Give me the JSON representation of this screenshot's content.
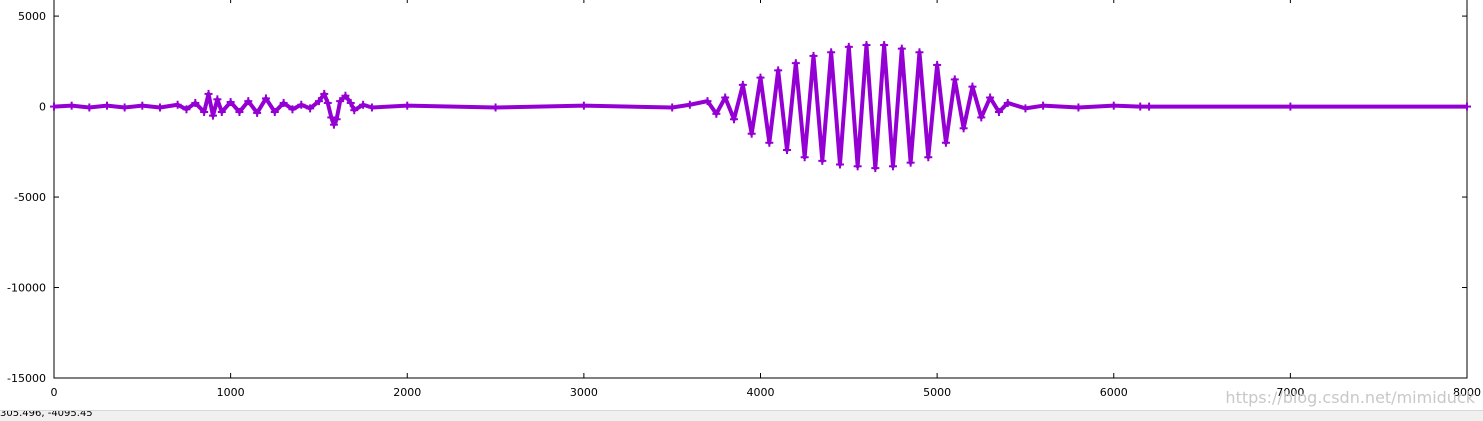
{
  "colors": {
    "series": "#9400d3",
    "axis": "#000000",
    "background": "#ffffff"
  },
  "status": {
    "coords": "305.496, -4095.45"
  },
  "watermark": {
    "text": "https://blog.csdn.net/mimiduck"
  },
  "chart_data": {
    "type": "line",
    "title": "",
    "xlabel": "",
    "ylabel": "",
    "xlim": [
      0,
      8000
    ],
    "ylim": [
      -15000,
      6000
    ],
    "grid": false,
    "legend": "none",
    "xticks": [
      0,
      1000,
      2000,
      3000,
      4000,
      5000,
      6000,
      7000,
      8000
    ],
    "yticks": [
      -15000,
      -10000,
      -5000,
      0,
      5000
    ],
    "series": [
      {
        "style": "points-plus",
        "x": [
          0,
          100,
          200,
          300,
          400,
          500,
          600,
          700,
          750,
          800,
          850,
          875,
          900,
          925,
          950,
          1000,
          1050,
          1100,
          1150,
          1200,
          1250,
          1300,
          1350,
          1400,
          1450,
          1500,
          1530,
          1550,
          1570,
          1585,
          1600,
          1620,
          1650,
          1680,
          1700,
          1750,
          1800,
          2000,
          2500,
          3000,
          3500,
          3600,
          3700,
          3750,
          3800,
          3850,
          3900,
          3950,
          4000,
          4050,
          4100,
          4150,
          4200,
          4250,
          4300,
          4350,
          4400,
          4450,
          4500,
          4550,
          4600,
          4650,
          4700,
          4750,
          4800,
          4850,
          4900,
          4950,
          5000,
          5050,
          5100,
          5150,
          5200,
          5250,
          5300,
          5350,
          5400,
          5500,
          5600,
          5800,
          6000,
          6150,
          6200,
          7000,
          8000
        ],
        "y": [
          0,
          50,
          -50,
          50,
          -50,
          50,
          -50,
          100,
          -150,
          200,
          -300,
          700,
          -500,
          400,
          -300,
          250,
          -300,
          300,
          -350,
          450,
          -300,
          200,
          -150,
          100,
          -100,
          300,
          700,
          200,
          -600,
          -1000,
          -700,
          300,
          600,
          200,
          -200,
          100,
          -50,
          50,
          -50,
          50,
          -50,
          100,
          300,
          -400,
          500,
          -700,
          1200,
          -1500,
          1600,
          -2000,
          2000,
          -2400,
          2400,
          -2800,
          2800,
          -3000,
          3000,
          -3200,
          3300,
          -3300,
          3400,
          -3400,
          3400,
          -3300,
          3200,
          -3100,
          3000,
          -2800,
          2300,
          -2000,
          1500,
          -1200,
          1100,
          -600,
          500,
          -300,
          200,
          -100,
          50,
          -50,
          50,
          0,
          0,
          0,
          0
        ]
      }
    ]
  }
}
